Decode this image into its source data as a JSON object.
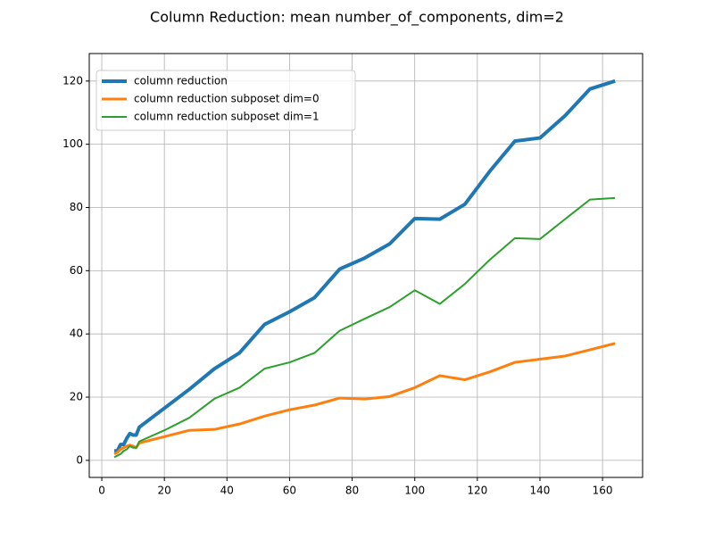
{
  "chart_data": {
    "type": "line",
    "title": "Column Reduction: mean number_of_components, dim=2",
    "x": [
      4,
      5,
      6,
      7,
      8,
      9,
      10,
      11,
      12,
      20,
      28,
      36,
      44,
      52,
      60,
      68,
      76,
      84,
      92,
      100,
      108,
      116,
      124,
      132,
      140,
      148,
      156,
      164
    ],
    "series": [
      {
        "name": "column reduction",
        "color": "#1f77b4",
        "width": 4,
        "values": [
          3,
          3,
          5,
          5,
          7,
          8.5,
          8,
          8,
          10.5,
          16.5,
          22.5,
          29,
          34,
          43,
          47,
          51.5,
          60.5,
          64,
          68.5,
          76.5,
          76.3,
          81,
          91.5,
          101,
          102,
          109,
          117.5,
          120
        ]
      },
      {
        "name": "column reduction subposet dim=0",
        "color": "#ff7f0e",
        "width": 3,
        "values": [
          2,
          2.5,
          3.5,
          4,
          4.5,
          4.8,
          4.5,
          4,
          5.5,
          7.5,
          9.5,
          9.8,
          11.5,
          14,
          16,
          17.5,
          19.7,
          19.4,
          20.2,
          23,
          26.8,
          25.5,
          28,
          31,
          32,
          33,
          35,
          37
        ]
      },
      {
        "name": "column reduction subposet dim=1",
        "color": "#2ca02c",
        "width": 2,
        "values": [
          1,
          1.5,
          2,
          3,
          3.5,
          4.5,
          4,
          4,
          6,
          9.5,
          13.5,
          19.5,
          23,
          29,
          31,
          34,
          41,
          44.8,
          48.5,
          53.8,
          49.5,
          55.8,
          63.5,
          70.3,
          70,
          76.3,
          82.5,
          83
        ]
      }
    ],
    "xlim": [
      -4,
      172.8
    ],
    "ylim": [
      -5.4,
      128.7
    ],
    "xticks": [
      0,
      20,
      40,
      60,
      80,
      100,
      120,
      140,
      160
    ],
    "yticks": [
      0,
      20,
      40,
      60,
      80,
      100,
      120
    ],
    "grid": true,
    "legend": "upper-left"
  }
}
